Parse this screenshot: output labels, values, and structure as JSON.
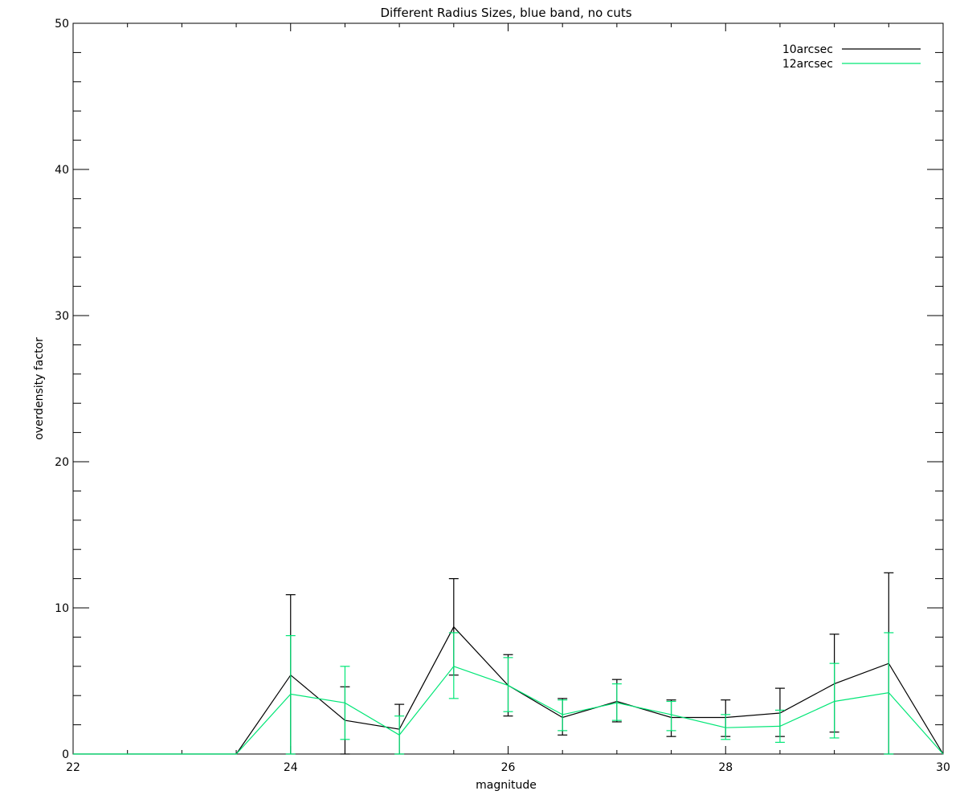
{
  "chart_data": {
    "type": "line",
    "title": "Different Radius Sizes, blue band, no cuts",
    "xlabel": "magnitude",
    "ylabel": "overdensity factor",
    "xlim": [
      22,
      30
    ],
    "ylim": [
      0,
      50
    ],
    "x_ticks": [
      22,
      24,
      26,
      28,
      30
    ],
    "y_ticks": [
      0,
      10,
      20,
      30,
      40,
      50
    ],
    "grid": false,
    "legend_position": "top-right",
    "x": [
      22.0,
      22.5,
      23.0,
      23.5,
      24.0,
      24.5,
      25.0,
      25.5,
      26.0,
      26.5,
      27.0,
      27.5,
      28.0,
      28.5,
      29.0,
      29.5,
      30.0
    ],
    "series": [
      {
        "name": "10arcsec",
        "color": "#000000",
        "values": [
          0,
          0,
          0,
          0,
          5.4,
          2.3,
          1.7,
          8.7,
          4.7,
          2.5,
          3.6,
          2.5,
          2.5,
          2.8,
          4.8,
          6.2,
          0
        ],
        "err_low": [
          null,
          null,
          null,
          null,
          0,
          0,
          0,
          5.4,
          2.6,
          1.3,
          2.2,
          1.2,
          1.2,
          1.2,
          1.5,
          0,
          null
        ],
        "err_high": [
          null,
          null,
          null,
          null,
          10.9,
          4.6,
          3.4,
          12.0,
          6.8,
          3.8,
          5.1,
          3.7,
          3.7,
          4.5,
          8.2,
          12.4,
          null
        ]
      },
      {
        "name": "12arcsec",
        "color": "#00e676",
        "values": [
          0,
          0,
          0,
          0,
          4.1,
          3.5,
          1.3,
          6.0,
          4.7,
          2.7,
          3.5,
          2.7,
          1.8,
          1.9,
          3.6,
          4.2,
          0
        ],
        "err_low": [
          null,
          null,
          null,
          null,
          0,
          1.0,
          0,
          3.8,
          2.9,
          1.6,
          2.3,
          1.6,
          1.0,
          0.8,
          1.1,
          0,
          null
        ],
        "err_high": [
          null,
          null,
          null,
          null,
          8.1,
          6.0,
          2.6,
          8.3,
          6.6,
          3.7,
          4.8,
          3.6,
          2.7,
          3.0,
          6.2,
          8.3,
          null
        ]
      }
    ]
  }
}
